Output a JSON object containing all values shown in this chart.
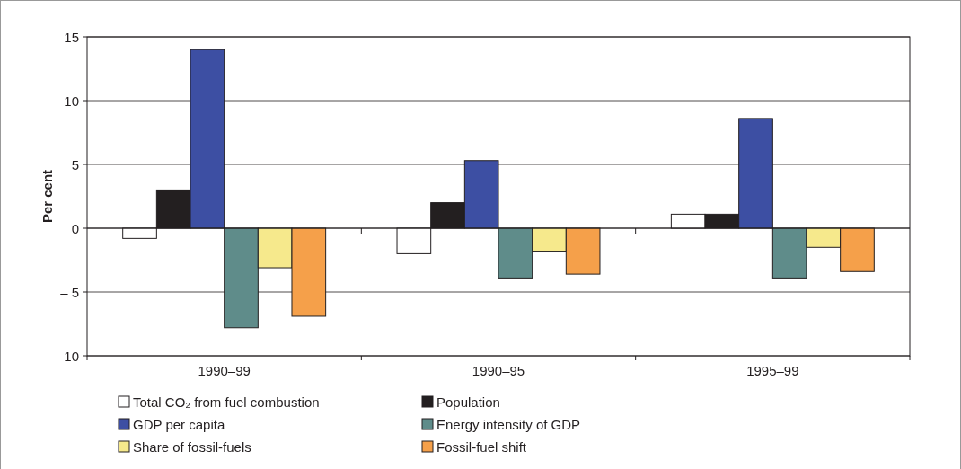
{
  "chart_data": {
    "type": "bar",
    "ylabel": "Per cent",
    "categories": [
      "1990–99",
      "1990–95",
      "1995–99"
    ],
    "series": [
      {
        "name": "Total CO₂ from fuel combustion",
        "color": "#ffffff",
        "values": [
          -0.8,
          -2.0,
          1.1
        ]
      },
      {
        "name": "Population",
        "color": "#231f20",
        "values": [
          3.0,
          2.0,
          1.1
        ]
      },
      {
        "name": "GDP per capita",
        "color": "#3d4fa3",
        "values": [
          14.0,
          5.3,
          8.6
        ]
      },
      {
        "name": "Energy intensity of GDP",
        "color": "#5f8c8a",
        "values": [
          -7.8,
          -3.9,
          -3.9
        ]
      },
      {
        "name": "Share of fossil-fuels",
        "color": "#f6e98c",
        "values": [
          -3.1,
          -1.8,
          -1.5
        ]
      },
      {
        "name": "Fossil-fuel shift",
        "color": "#f5a04a",
        "values": [
          -6.9,
          -3.6,
          -3.4
        ]
      }
    ],
    "ylim": [
      -10,
      15
    ],
    "yticks": [
      {
        "value": -10,
        "label": "– 10"
      },
      {
        "value": -5,
        "label": "– 5"
      },
      0,
      5,
      10,
      15
    ],
    "grid": "y",
    "legend": "bottom"
  }
}
